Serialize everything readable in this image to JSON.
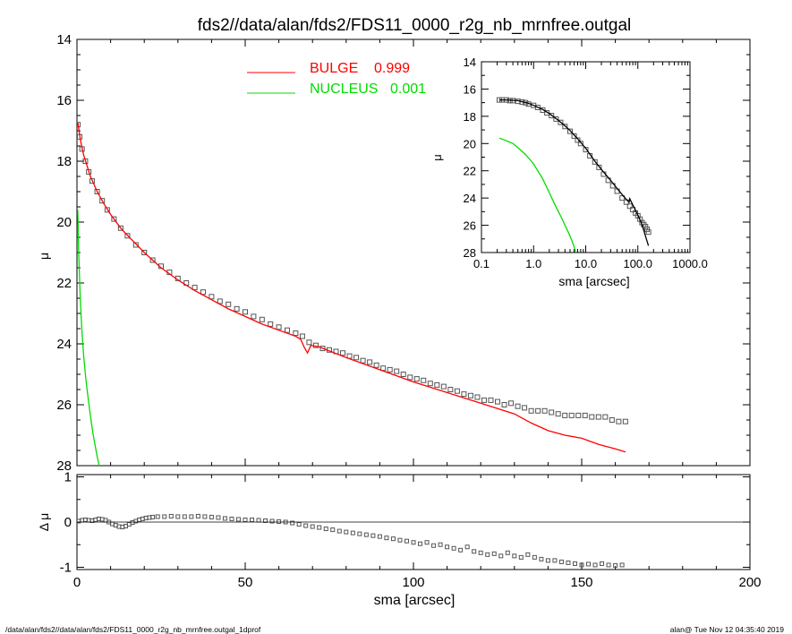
{
  "title": "fds2//data/alan/fds2/FDS11_0000_r2g_nb_mrnfree.outgal",
  "footer_left": "/data/alan/fds2//data/alan/fds2/FDS11_0000_r2g_nb_mrnfree.outgal_1dprof",
  "footer_right": "alan@  Tue Nov 12 04:35:40 2019",
  "colors": {
    "bulge": "#ff0000",
    "nucleus": "#00dd00",
    "data": "#555555",
    "axes": "#000000"
  },
  "chart_data": [
    {
      "id": "main",
      "type": "scatter",
      "ylabel": "μ",
      "xlim": [
        0,
        200
      ],
      "ylim": [
        28,
        14
      ],
      "yticks": [
        "14",
        "16",
        "18",
        "20",
        "22",
        "24",
        "26",
        "28"
      ],
      "legend": [
        {
          "label": "BULGE",
          "value": "0.999",
          "color": "#ff0000"
        },
        {
          "label": "NUCLEUS",
          "value": "0.001",
          "color": "#00dd00"
        }
      ],
      "series": [
        {
          "name": "data",
          "style": "markers",
          "x": [
            0.3,
            0.8,
            1.5,
            2.5,
            3.5,
            4.5,
            6,
            7.5,
            9,
            11,
            13,
            15,
            17.5,
            20,
            22.5,
            25,
            27.5,
            30,
            32.5,
            35,
            37.5,
            40,
            42.5,
            45,
            47.5,
            50,
            52.5,
            55,
            57.5,
            60,
            62.5,
            65,
            67,
            69,
            71,
            73,
            75,
            77,
            79,
            81,
            83,
            85,
            87,
            89,
            91,
            93,
            95,
            97,
            99,
            101,
            103,
            105,
            107,
            109,
            111,
            113,
            115,
            117,
            119,
            121,
            123,
            125,
            127,
            129,
            131,
            133,
            135,
            137,
            139,
            141,
            143,
            145,
            147,
            149,
            151,
            153,
            155,
            157,
            159,
            161,
            163
          ],
          "y": [
            16.8,
            17.2,
            17.6,
            18.0,
            18.35,
            18.65,
            19.0,
            19.3,
            19.6,
            19.9,
            20.2,
            20.45,
            20.75,
            21.0,
            21.25,
            21.45,
            21.65,
            21.85,
            22.0,
            22.15,
            22.3,
            22.45,
            22.6,
            22.7,
            22.85,
            22.95,
            23.1,
            23.2,
            23.35,
            23.45,
            23.55,
            23.65,
            23.75,
            23.95,
            24.05,
            24.15,
            24.2,
            24.25,
            24.3,
            24.4,
            24.45,
            24.55,
            24.6,
            24.7,
            24.8,
            24.85,
            24.9,
            25.0,
            25.1,
            25.15,
            25.2,
            25.3,
            25.35,
            25.4,
            25.5,
            25.55,
            25.65,
            25.7,
            25.75,
            25.85,
            25.85,
            25.9,
            26.0,
            25.95,
            26.05,
            26.1,
            26.2,
            26.2,
            26.2,
            26.25,
            26.3,
            26.35,
            26.35,
            26.35,
            26.35,
            26.4,
            26.4,
            26.4,
            26.5,
            26.55,
            26.55
          ]
        },
        {
          "name": "BULGE",
          "style": "line",
          "color": "#ff0000",
          "x": [
            0.3,
            1,
            2,
            4,
            6,
            8,
            10,
            13,
            16,
            20,
            25,
            30,
            35,
            40,
            45,
            50,
            55,
            60,
            65,
            66.5,
            67.5,
            68.5,
            69.5,
            72,
            80,
            90,
            100,
            110,
            120,
            130,
            135,
            140,
            145,
            150,
            155,
            160,
            163
          ],
          "y": [
            16.75,
            17.3,
            17.8,
            18.5,
            19.0,
            19.4,
            19.75,
            20.2,
            20.55,
            21.0,
            21.5,
            21.9,
            22.25,
            22.55,
            22.85,
            23.1,
            23.35,
            23.55,
            23.75,
            23.85,
            24.1,
            24.3,
            24.05,
            24.1,
            24.45,
            24.85,
            25.25,
            25.6,
            25.95,
            26.3,
            26.6,
            26.85,
            27.0,
            27.1,
            27.3,
            27.45,
            27.55
          ]
        },
        {
          "name": "NUCLEUS",
          "style": "line",
          "color": "#00dd00",
          "x": [
            0.25,
            0.5,
            1,
            1.5,
            2,
            2.5,
            3,
            3.5,
            4,
            4.5,
            5,
            5.5,
            6,
            6.5,
            7
          ],
          "y": [
            19.6,
            21.0,
            22.6,
            23.6,
            24.4,
            25.0,
            25.5,
            25.95,
            26.35,
            26.75,
            27.1,
            27.4,
            27.7,
            27.95,
            28.2
          ]
        }
      ]
    },
    {
      "id": "residual",
      "type": "scatter",
      "xlabel": "sma [arcsec]",
      "ylabel": "Δ μ",
      "xlim": [
        0,
        200
      ],
      "ylim": [
        -1.05,
        1.05
      ],
      "xticks": [
        "0",
        "50",
        "100",
        "150",
        "200"
      ],
      "yticks": [
        "1",
        "0",
        "-1"
      ],
      "series": [
        {
          "name": "residual",
          "style": "markers",
          "x": [
            0.5,
            1.5,
            2.5,
            3.5,
            4.5,
            5.5,
            6.5,
            7.5,
            8.5,
            9.5,
            10.5,
            11.5,
            12.5,
            13.5,
            14.5,
            15.5,
            16.5,
            17.5,
            18.5,
            19.5,
            20.5,
            21.5,
            22.5,
            24,
            26,
            28,
            30,
            32,
            34,
            36,
            38,
            40,
            42,
            44,
            46,
            48,
            50,
            52,
            54,
            56,
            58,
            60,
            62,
            64,
            66,
            68,
            70,
            72,
            74,
            76,
            78,
            80,
            82,
            84,
            86,
            88,
            90,
            92,
            94,
            96,
            98,
            100,
            102,
            104,
            106,
            108,
            110,
            112,
            114,
            116,
            118,
            120,
            122,
            124,
            126,
            128,
            130,
            132,
            134,
            136,
            138,
            140,
            142,
            144,
            146,
            148,
            150,
            152,
            154,
            156,
            158,
            160,
            162
          ],
          "y": [
            0.02,
            0.04,
            0.05,
            0.04,
            0.03,
            0.05,
            0.07,
            0.06,
            0.04,
            0.0,
            -0.04,
            -0.07,
            -0.1,
            -0.11,
            -0.09,
            -0.05,
            -0.01,
            0.02,
            0.05,
            0.07,
            0.09,
            0.1,
            0.11,
            0.12,
            0.12,
            0.13,
            0.12,
            0.12,
            0.12,
            0.13,
            0.12,
            0.11,
            0.1,
            0.08,
            0.07,
            0.06,
            0.05,
            0.05,
            0.04,
            0.03,
            0.02,
            0.01,
            0.0,
            -0.02,
            -0.05,
            -0.08,
            -0.1,
            -0.12,
            -0.15,
            -0.17,
            -0.2,
            -0.22,
            -0.24,
            -0.26,
            -0.28,
            -0.3,
            -0.32,
            -0.35,
            -0.37,
            -0.4,
            -0.42,
            -0.45,
            -0.48,
            -0.45,
            -0.52,
            -0.5,
            -0.55,
            -0.58,
            -0.62,
            -0.55,
            -0.65,
            -0.68,
            -0.72,
            -0.7,
            -0.75,
            -0.68,
            -0.75,
            -0.78,
            -0.72,
            -0.78,
            -0.82,
            -0.85,
            -0.85,
            -0.88,
            -0.9,
            -0.92,
            -0.95,
            -0.93,
            -0.95,
            -0.92,
            -0.95,
            -0.96,
            -0.95
          ]
        },
        {
          "name": "zero",
          "style": "line",
          "x": [
            0,
            200
          ],
          "y": [
            0,
            0
          ]
        }
      ]
    },
    {
      "id": "inset",
      "type": "scatter",
      "xlabel": "sma [arcsec]",
      "ylabel": "μ",
      "xscale": "log",
      "xlim": [
        0.1,
        1000
      ],
      "ylim": [
        28,
        14
      ],
      "xticks": [
        0.1,
        1.0,
        10.0,
        100.0,
        1000.0
      ],
      "xtick_labels": [
        "0.1",
        "1.0",
        "10.0",
        "100.0",
        "1000.0"
      ],
      "yticks": [
        "14",
        "16",
        "18",
        "20",
        "22",
        "24",
        "26",
        "28"
      ],
      "series": [
        {
          "name": "data",
          "style": "markers",
          "x": [
            0.22,
            0.25,
            0.3,
            0.35,
            0.4,
            0.5,
            0.6,
            0.7,
            0.8,
            1.0,
            1.2,
            1.5,
            1.8,
            2.2,
            2.7,
            3.3,
            4,
            5,
            6,
            7,
            8,
            10,
            12,
            15,
            18,
            22,
            27,
            33,
            40,
            50,
            60,
            70,
            80,
            90,
            100,
            110,
            120,
            130,
            140,
            150,
            160
          ],
          "y": [
            16.8,
            16.8,
            16.8,
            16.85,
            16.85,
            16.9,
            16.95,
            17.0,
            17.1,
            17.2,
            17.35,
            17.55,
            17.75,
            17.95,
            18.2,
            18.45,
            18.75,
            19.1,
            19.45,
            19.75,
            20.0,
            20.45,
            20.9,
            21.35,
            21.75,
            22.25,
            22.7,
            23.1,
            23.5,
            24.0,
            24.3,
            24.6,
            24.85,
            25.1,
            25.3,
            25.55,
            25.8,
            25.95,
            26.1,
            26.3,
            26.5
          ]
        },
        {
          "name": "BULGE",
          "style": "line",
          "color": "#000000",
          "x": [
            0.22,
            0.3,
            0.5,
            0.8,
            1.0,
            1.5,
            2,
            3,
            4,
            5,
            7,
            10,
            15,
            20,
            30,
            40,
            50,
            60,
            68,
            70,
            80,
            100,
            120,
            140,
            160
          ],
          "y": [
            16.8,
            16.8,
            16.85,
            17.05,
            17.2,
            17.5,
            17.8,
            18.3,
            18.7,
            19.05,
            19.65,
            20.35,
            21.3,
            21.9,
            22.7,
            23.3,
            23.75,
            24.1,
            24.3,
            24.05,
            24.5,
            25.25,
            25.95,
            26.8,
            27.5
          ]
        },
        {
          "name": "NUCLEUS",
          "style": "line",
          "color": "#00dd00",
          "x": [
            0.22,
            0.3,
            0.4,
            0.5,
            0.7,
            1.0,
            1.5,
            2,
            2.5,
            3,
            3.5,
            4,
            4.5,
            5,
            5.5,
            6,
            6.5
          ],
          "y": [
            19.6,
            19.8,
            20.0,
            20.3,
            20.8,
            21.5,
            22.6,
            23.6,
            24.4,
            25.0,
            25.5,
            26.0,
            26.4,
            26.8,
            27.2,
            27.6,
            28.0
          ]
        }
      ]
    }
  ]
}
